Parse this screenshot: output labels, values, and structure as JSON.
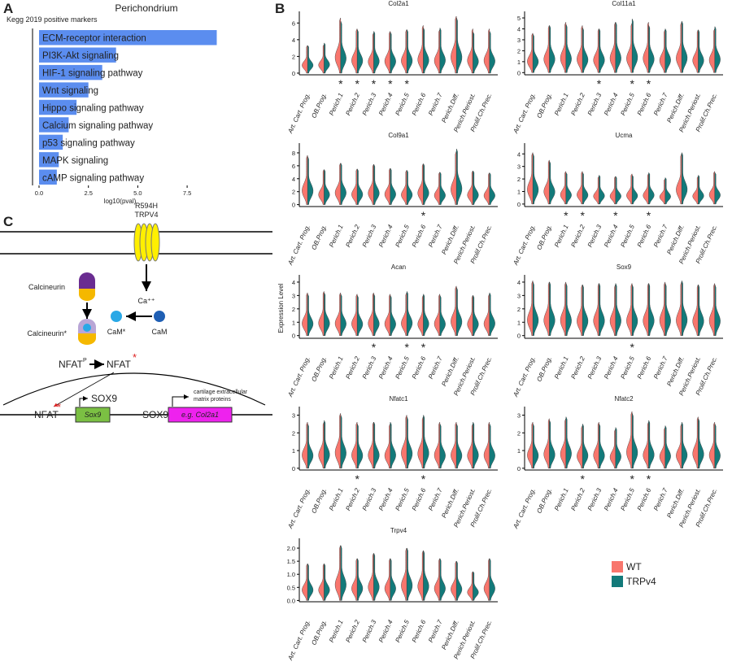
{
  "panels": [
    "A",
    "B",
    "C"
  ],
  "diagram": {
    "mutation": "R594H",
    "channel": "TRPV4",
    "calcium": "Ca⁺⁺",
    "calcineurin": "Calcineurin",
    "calcineurin_active": "Calcineurin*",
    "cam_active": "CaM*",
    "cam": "CaM",
    "nfat_p": "NFAT",
    "phospho": "P",
    "nfat_active": "NFAT",
    "nfat_star": "*",
    "nfat_nuclear": "NFAT",
    "nfat_nuclear_star": "*",
    "sox9_protein": "SOX9",
    "sox9_gene": "Sox9",
    "sox9_tf": "SOX9",
    "target_gene": "e.g. Col2a1",
    "product_line1": "cartilage extracellular",
    "product_line2": "matrix proteins"
  },
  "chart_data": [
    {
      "type": "hbar",
      "title": "Perichondrium",
      "subtitle": "Kegg 2019 positive markers",
      "xlabel": "log10(pval)",
      "categories": [
        "ECM-receptor interaction",
        "PI3K-Akt signaling",
        "HIF-1 signaling pathway",
        "Wnt signaling",
        "Hippo signaling pathway",
        "Calcium signaling pathway",
        "p53 signaling pathway",
        "MAPK signaling",
        "cAMP signaling pathway"
      ],
      "values": [
        9.0,
        3.9,
        3.2,
        2.5,
        1.9,
        1.5,
        1.2,
        1.0,
        0.9
      ],
      "color": "#5b8def",
      "xlim": [
        -0.33,
        9.35
      ],
      "xticks": [
        {
          "value": 0,
          "label": "0.0"
        },
        {
          "value": 2.5,
          "label": "2.5"
        },
        {
          "value": 5,
          "label": "5.0"
        },
        {
          "value": 7.5,
          "label": "7.5"
        }
      ]
    },
    {
      "type": "violin",
      "title": "Col2a1",
      "ylim": [
        -0.2,
        7
      ],
      "yticks": [
        0,
        2,
        4,
        6
      ],
      "categories": [
        "Art. Cart. Prog.",
        "OB.Prog.",
        "Perich.1",
        "Perich.2",
        "Perich.3",
        "Perich.4",
        "Perich.5",
        "Perich.6",
        "Perich.7",
        "Perich.Diff.",
        "Perich.Periost.",
        "Prolif.Ch.Prec."
      ],
      "markers": [
        null,
        null,
        "*",
        "*",
        "*",
        "*",
        "*",
        null,
        null,
        null,
        null,
        null
      ],
      "series": [
        {
          "color": "#f8766d",
          "values": [
            3.3,
            3.4,
            6.6,
            5.3,
            4.8,
            5.0,
            5.2,
            5.7,
            5.2,
            6.8,
            5.3,
            5.3
          ]
        },
        {
          "color": "#137a7a",
          "values": [
            3.3,
            3.6,
            6.2,
            5.2,
            5.0,
            4.9,
            5.2,
            5.4,
            5.4,
            6.6,
            4.9,
            5.0
          ]
        }
      ]
    },
    {
      "type": "violin",
      "title": "Col11a1",
      "ylim": [
        -0.2,
        5.3
      ],
      "yticks": [
        0,
        1,
        2,
        3,
        4,
        5
      ],
      "categories": [
        "Art. Cart. Prog.",
        "OB.Prog.",
        "Perich.1",
        "Perich.2",
        "Perich.3",
        "Perich.4",
        "Perich.5",
        "Perich.6",
        "Perich.7",
        "Perich.Diff.",
        "Perich.Periost.",
        "Prolif.Ch.Prec."
      ],
      "markers": [
        null,
        null,
        null,
        null,
        "*",
        null,
        "*",
        "*",
        null,
        null,
        null,
        null
      ],
      "series": [
        {
          "color": "#f8766d",
          "values": [
            3.6,
            4.3,
            4.6,
            4.3,
            4.0,
            4.6,
            4.5,
            4.6,
            3.9,
            4.6,
            3.9,
            4.0
          ]
        },
        {
          "color": "#137a7a",
          "values": [
            3.5,
            4.3,
            4.4,
            4.1,
            4.0,
            4.6,
            4.9,
            4.3,
            4.0,
            4.7,
            3.9,
            4.2
          ]
        }
      ]
    },
    {
      "type": "violin",
      "title": "Col9a1",
      "ylim": [
        -0.3,
        9
      ],
      "yticks": [
        0,
        2,
        4,
        6,
        8
      ],
      "categories": [
        "Art. Cart. Prog.",
        "OB.Prog.",
        "Perich.1",
        "Perich.2",
        "Perich.3",
        "Perich.4",
        "Perich.5",
        "Perich.6",
        "Perich.7",
        "Perich.Diff.",
        "Perich.Periost.",
        "Prolif.Ch.Prec."
      ],
      "markers": [
        null,
        null,
        null,
        null,
        null,
        null,
        null,
        "*",
        null,
        null,
        null,
        null
      ],
      "series": [
        {
          "color": "#f8766d",
          "values": [
            7.6,
            5.4,
            6.4,
            5.5,
            6.2,
            5.6,
            5.3,
            6.3,
            5.0,
            8.2,
            5.2,
            4.9
          ]
        },
        {
          "color": "#137a7a",
          "values": [
            7.4,
            5.4,
            6.4,
            5.5,
            6.2,
            5.6,
            5.3,
            6.3,
            5.0,
            8.6,
            5.2,
            4.9
          ]
        }
      ]
    },
    {
      "type": "violin",
      "title": "Ucma",
      "ylim": [
        -0.2,
        4.6
      ],
      "yticks": [
        0,
        1,
        2,
        3,
        4
      ],
      "categories": [
        "Art. Cart. Prog.",
        "OB.Prog.",
        "Perich.1",
        "Perich.2",
        "Perich.3",
        "Perich.4",
        "Perich.5",
        "Perich.6",
        "Perich.7",
        "Perich.Diff.",
        "Perich.Periost.",
        "Prolif.Ch.Prec."
      ],
      "markers": [
        null,
        null,
        "*",
        "*",
        null,
        "*",
        null,
        "*",
        null,
        null,
        null,
        null
      ],
      "series": [
        {
          "color": "#f8766d",
          "values": [
            4.1,
            3.5,
            2.6,
            2.6,
            2.2,
            2.2,
            2.4,
            2.4,
            2.0,
            4.0,
            2.2,
            2.6
          ]
        },
        {
          "color": "#137a7a",
          "values": [
            4.0,
            3.4,
            2.5,
            2.5,
            2.3,
            2.2,
            2.3,
            2.5,
            2.1,
            4.1,
            2.3,
            2.5
          ]
        }
      ]
    },
    {
      "type": "violin",
      "title": "Acan",
      "ylabel": "Expression Level",
      "ylim": [
        -0.2,
        4.3
      ],
      "yticks": [
        0,
        1,
        2,
        3,
        4
      ],
      "categories": [
        "Art. Cart. Prog.",
        "OB.Prog.",
        "Perich.1",
        "Perich.2",
        "Perich.3",
        "Perich.4",
        "Perich.5",
        "Perich.6",
        "Perich.7",
        "Perich.Diff.",
        "Perich.Periost.",
        "Prolif.Ch.Prec."
      ],
      "markers": [
        null,
        null,
        null,
        null,
        "*",
        null,
        "*",
        "*",
        null,
        null,
        null,
        null
      ],
      "series": [
        {
          "color": "#f8766d",
          "values": [
            3.2,
            3.3,
            3.2,
            3.1,
            3.2,
            3.1,
            3.2,
            3.0,
            3.1,
            3.7,
            3.0,
            3.1
          ]
        },
        {
          "color": "#137a7a",
          "values": [
            3.1,
            3.2,
            3.1,
            3.0,
            3.1,
            3.0,
            3.3,
            3.1,
            3.0,
            3.6,
            3.0,
            3.2
          ]
        }
      ]
    },
    {
      "type": "violin",
      "title": "Sox9",
      "ylim": [
        -0.2,
        4.3
      ],
      "yticks": [
        0,
        1,
        2,
        3,
        4
      ],
      "categories": [
        "Art. Cart. Prog.",
        "OB.Prog.",
        "Perich.1",
        "Perich.2",
        "Perich.3",
        "Perich.4",
        "Perich.5",
        "Perich.6",
        "Perich.7",
        "Perich.Diff.",
        "Perich.Periost.",
        "Prolif.Ch.Prec."
      ],
      "markers": [
        null,
        null,
        null,
        null,
        null,
        null,
        "*",
        null,
        null,
        null,
        null,
        null
      ],
      "series": [
        {
          "color": "#f8766d",
          "values": [
            4.1,
            4.0,
            4.0,
            3.8,
            3.9,
            3.8,
            3.9,
            3.9,
            4.0,
            4.0,
            3.8,
            3.9
          ]
        },
        {
          "color": "#137a7a",
          "values": [
            4.0,
            4.0,
            3.9,
            3.8,
            3.9,
            3.9,
            3.8,
            3.9,
            3.9,
            4.1,
            3.8,
            3.8
          ]
        }
      ]
    },
    {
      "type": "violin",
      "title": "Nfatc1",
      "ylim": [
        -0.1,
        3.3
      ],
      "yticks": [
        0,
        1,
        2,
        3
      ],
      "categories": [
        "Art. Cart. Prog.",
        "OB.Prog.",
        "Perich.1",
        "Perich.2",
        "Perich.3",
        "Perich.4",
        "Perich.5",
        "Perich.6",
        "Perich.7",
        "Perich.Diff.",
        "Perich.Periost.",
        "Prolif.Ch.Prec."
      ],
      "markers": [
        null,
        null,
        null,
        "*",
        null,
        null,
        null,
        "*",
        null,
        null,
        null,
        null
      ],
      "series": [
        {
          "color": "#f8766d",
          "values": [
            2.6,
            2.6,
            3.1,
            2.6,
            2.6,
            2.5,
            3.0,
            2.9,
            2.6,
            2.6,
            2.5,
            2.6
          ]
        },
        {
          "color": "#137a7a",
          "values": [
            2.5,
            2.7,
            3.0,
            2.5,
            2.6,
            2.6,
            2.9,
            3.0,
            2.5,
            2.5,
            2.6,
            2.5
          ]
        }
      ]
    },
    {
      "type": "violin",
      "title": "Nfatc2",
      "ylim": [
        -0.1,
        3.3
      ],
      "yticks": [
        0,
        1,
        2,
        3
      ],
      "categories": [
        "Art. Cart. Prog.",
        "OB.Prog.",
        "Perich.1",
        "Perich.2",
        "Perich.3",
        "Perich.4",
        "Perich.5",
        "Perich.6",
        "Perich.7",
        "Perich.Diff.",
        "Perich.Periost.",
        "Prolif.Ch.Prec."
      ],
      "markers": [
        null,
        null,
        null,
        "*",
        null,
        null,
        "*",
        "*",
        null,
        null,
        null,
        null
      ],
      "series": [
        {
          "color": "#f8766d",
          "values": [
            2.6,
            2.8,
            2.8,
            2.4,
            2.6,
            2.2,
            3.2,
            2.6,
            2.3,
            2.5,
            2.9,
            2.6
          ]
        },
        {
          "color": "#137a7a",
          "values": [
            2.5,
            2.7,
            2.9,
            2.5,
            2.5,
            2.3,
            3.1,
            2.7,
            2.4,
            2.6,
            2.8,
            2.5
          ]
        }
      ]
    },
    {
      "type": "violin",
      "title": "Trpv4",
      "ylim": [
        -0.05,
        2.25
      ],
      "yticks": [
        {
          "value": 0,
          "label": "0.0"
        },
        {
          "value": 0.5,
          "label": "0.5"
        },
        {
          "value": 1,
          "label": "1.0"
        },
        {
          "value": 1.5,
          "label": "1.5"
        },
        {
          "value": 2,
          "label": "2.0"
        }
      ],
      "categories": [
        "Art. Cart. Prog.",
        "OB.Prog.",
        "Perich.1",
        "Perich.2",
        "Perich.3",
        "Perich.4",
        "Perich.5",
        "Perich.6",
        "Perich.7",
        "Perich.Diff.",
        "Perich.Periost.",
        "Prolif.Ch.Prec."
      ],
      "markers": [
        null,
        null,
        null,
        null,
        null,
        null,
        null,
        null,
        null,
        null,
        null,
        null
      ],
      "series": [
        {
          "name": "WT",
          "color": "#f8766d",
          "values": [
            1.4,
            1.4,
            2.1,
            1.6,
            1.8,
            1.6,
            2.0,
            1.9,
            1.6,
            1.5,
            1.1,
            1.6
          ]
        },
        {
          "name": "TRPv4",
          "color": "#137a7a",
          "values": [
            1.4,
            1.4,
            2.1,
            1.6,
            1.8,
            1.6,
            2.0,
            1.9,
            1.6,
            1.5,
            1.1,
            1.6
          ]
        }
      ]
    }
  ]
}
